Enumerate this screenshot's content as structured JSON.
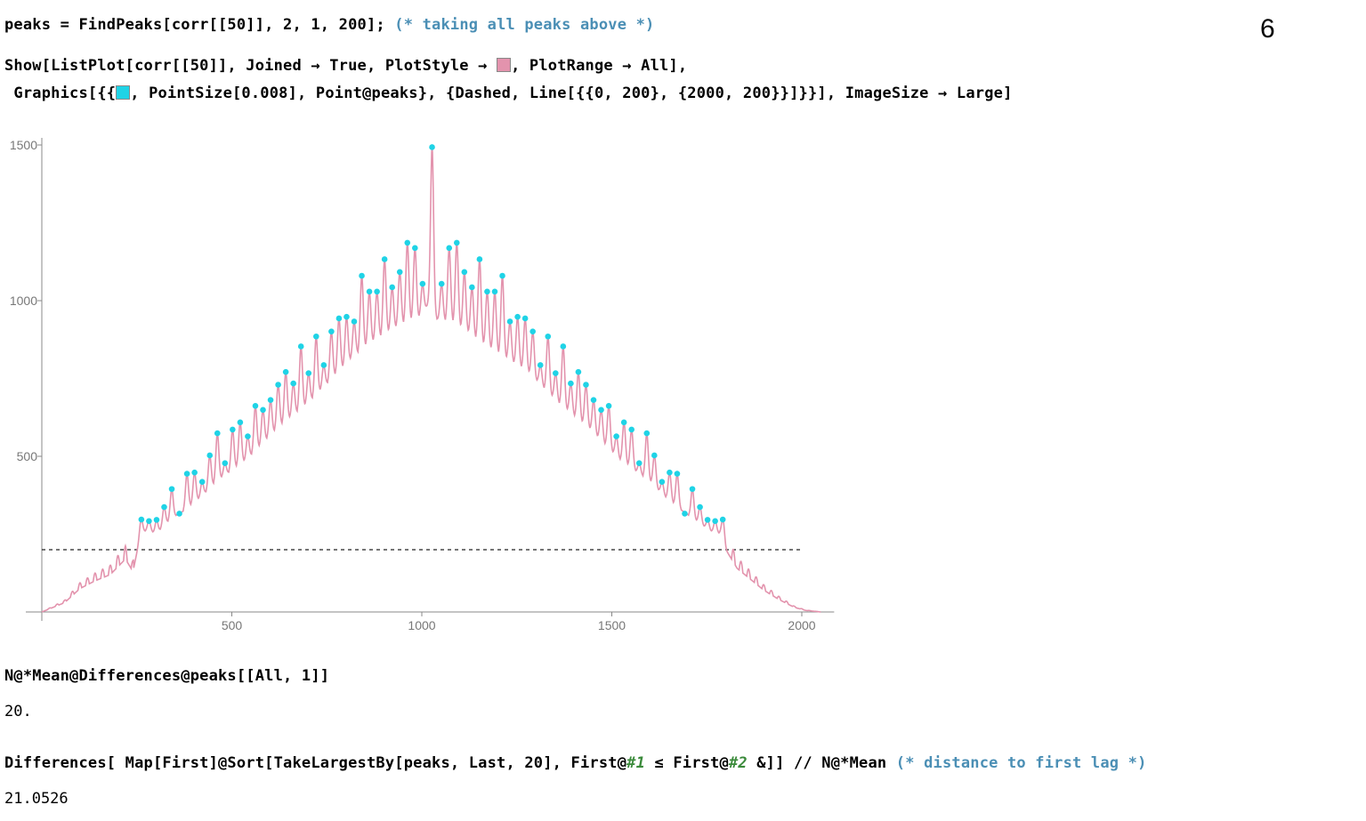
{
  "slide_number": "6",
  "cells": {
    "line1_code": "peaks = FindPeaks[corr[[50]], 2, 1, 200];",
    "line1_comment": "(* taking all peaks above *)",
    "line2a": "Show[ListPlot[corr[[50]], Joined → True, PlotStyle → ",
    "line2b": ", PlotRange → All],",
    "line3a": " Graphics[{{",
    "line3b": ", PointSize[0.008], Point@peaks}, {Dashed, Line[{{0, 200}, {2000, 200}}]}}], ImageSize → Large]",
    "in2": "N@*Mean@Differences@peaks[[All, 1]]",
    "out2": "20.",
    "in3a": "Differences[ Map[First]@Sort[TakeLargestBy[peaks, Last, 20], First@",
    "in3_slot1": "#1",
    "in3b": " ≤ First@",
    "in3_slot2": "#2",
    "in3c": " &]] // N@*Mean",
    "in3_comment": "(* distance to first lag *)",
    "out3": "21.0526"
  },
  "colors": {
    "line": "#e393ad",
    "points": "#1fd3e6",
    "dashed": "#222222",
    "axis": "#888888"
  },
  "chart_data": {
    "type": "line",
    "title": "",
    "xlabel": "",
    "ylabel": "",
    "xlim": [
      0,
      2050
    ],
    "ylim": [
      0,
      1500
    ],
    "x_ticks": [
      500,
      1000,
      1500,
      2000
    ],
    "y_ticks": [
      500,
      1000,
      1500
    ],
    "threshold_line": {
      "x": [
        0,
        2000
      ],
      "y": 200,
      "style": "dashed"
    },
    "peak_period": 20,
    "series": [
      {
        "kind": "line",
        "points": [
          [
            0,
            0
          ],
          [
            60,
            30
          ],
          [
            100,
            75
          ],
          [
            140,
            100
          ],
          [
            180,
            120
          ],
          [
            220,
            170
          ],
          [
            240,
            130
          ],
          [
            260,
            250
          ],
          [
            280,
            265
          ],
          [
            300,
            250
          ],
          [
            340,
            300
          ],
          [
            380,
            330
          ],
          [
            420,
            370
          ],
          [
            460,
            420
          ],
          [
            500,
            455
          ],
          [
            540,
            490
          ],
          [
            580,
            540
          ],
          [
            620,
            590
          ],
          [
            660,
            630
          ],
          [
            700,
            670
          ],
          [
            740,
            720
          ],
          [
            780,
            770
          ],
          [
            820,
            820
          ],
          [
            860,
            860
          ],
          [
            900,
            890
          ],
          [
            940,
            920
          ],
          [
            980,
            940
          ],
          [
            1000,
            950
          ],
          [
            1020,
            1000
          ],
          [
            1040,
            940
          ],
          [
            1080,
            930
          ],
          [
            1120,
            900
          ],
          [
            1160,
            860
          ],
          [
            1200,
            830
          ],
          [
            1240,
            800
          ],
          [
            1280,
            770
          ],
          [
            1320,
            720
          ],
          [
            1360,
            670
          ],
          [
            1400,
            630
          ],
          [
            1440,
            590
          ],
          [
            1480,
            540
          ],
          [
            1520,
            490
          ],
          [
            1560,
            455
          ],
          [
            1600,
            420
          ],
          [
            1640,
            370
          ],
          [
            1680,
            330
          ],
          [
            1720,
            295
          ],
          [
            1760,
            260
          ],
          [
            1790,
            250
          ],
          [
            1800,
            200
          ],
          [
            1830,
            140
          ],
          [
            1860,
            110
          ],
          [
            1900,
            70
          ],
          [
            1940,
            40
          ],
          [
            1980,
            15
          ],
          [
            2010,
            5
          ],
          [
            2050,
            0
          ]
        ]
      },
      {
        "kind": "peaks",
        "points": [
          [
            262,
            297
          ],
          [
            282,
            292
          ],
          [
            302,
            296
          ],
          [
            322,
            337
          ],
          [
            342,
            395
          ],
          [
            362,
            316
          ],
          [
            382,
            444
          ],
          [
            402,
            448
          ],
          [
            422,
            418
          ],
          [
            442,
            503
          ],
          [
            462,
            574
          ],
          [
            482,
            478
          ],
          [
            502,
            586
          ],
          [
            522,
            609
          ],
          [
            542,
            564
          ],
          [
            562,
            662
          ],
          [
            582,
            649
          ],
          [
            602,
            681
          ],
          [
            622,
            730
          ],
          [
            642,
            771
          ],
          [
            662,
            734
          ],
          [
            682,
            853
          ],
          [
            702,
            767
          ],
          [
            722,
            885
          ],
          [
            742,
            793
          ],
          [
            762,
            901
          ],
          [
            782,
            943
          ],
          [
            802,
            948
          ],
          [
            822,
            933
          ],
          [
            842,
            1080
          ],
          [
            862,
            1029
          ],
          [
            882,
            1029
          ],
          [
            902,
            1133
          ],
          [
            922,
            1043
          ],
          [
            942,
            1092
          ],
          [
            962,
            1186
          ],
          [
            982,
            1169
          ],
          [
            1002,
            1054
          ],
          [
            1027,
            1493
          ],
          [
            1052,
            1054
          ],
          [
            1072,
            1169
          ],
          [
            1092,
            1186
          ],
          [
            1112,
            1092
          ],
          [
            1132,
            1043
          ],
          [
            1152,
            1133
          ],
          [
            1172,
            1029
          ],
          [
            1192,
            1029
          ],
          [
            1212,
            1080
          ],
          [
            1232,
            933
          ],
          [
            1252,
            948
          ],
          [
            1272,
            943
          ],
          [
            1292,
            901
          ],
          [
            1312,
            793
          ],
          [
            1332,
            885
          ],
          [
            1352,
            767
          ],
          [
            1372,
            853
          ],
          [
            1392,
            734
          ],
          [
            1412,
            771
          ],
          [
            1432,
            730
          ],
          [
            1452,
            681
          ],
          [
            1472,
            649
          ],
          [
            1492,
            662
          ],
          [
            1512,
            564
          ],
          [
            1532,
            609
          ],
          [
            1552,
            586
          ],
          [
            1572,
            478
          ],
          [
            1592,
            574
          ],
          [
            1612,
            503
          ],
          [
            1632,
            418
          ],
          [
            1652,
            448
          ],
          [
            1672,
            444
          ],
          [
            1692,
            316
          ],
          [
            1712,
            395
          ],
          [
            1732,
            337
          ],
          [
            1752,
            296
          ],
          [
            1772,
            292
          ],
          [
            1792,
            297
          ]
        ]
      }
    ]
  }
}
